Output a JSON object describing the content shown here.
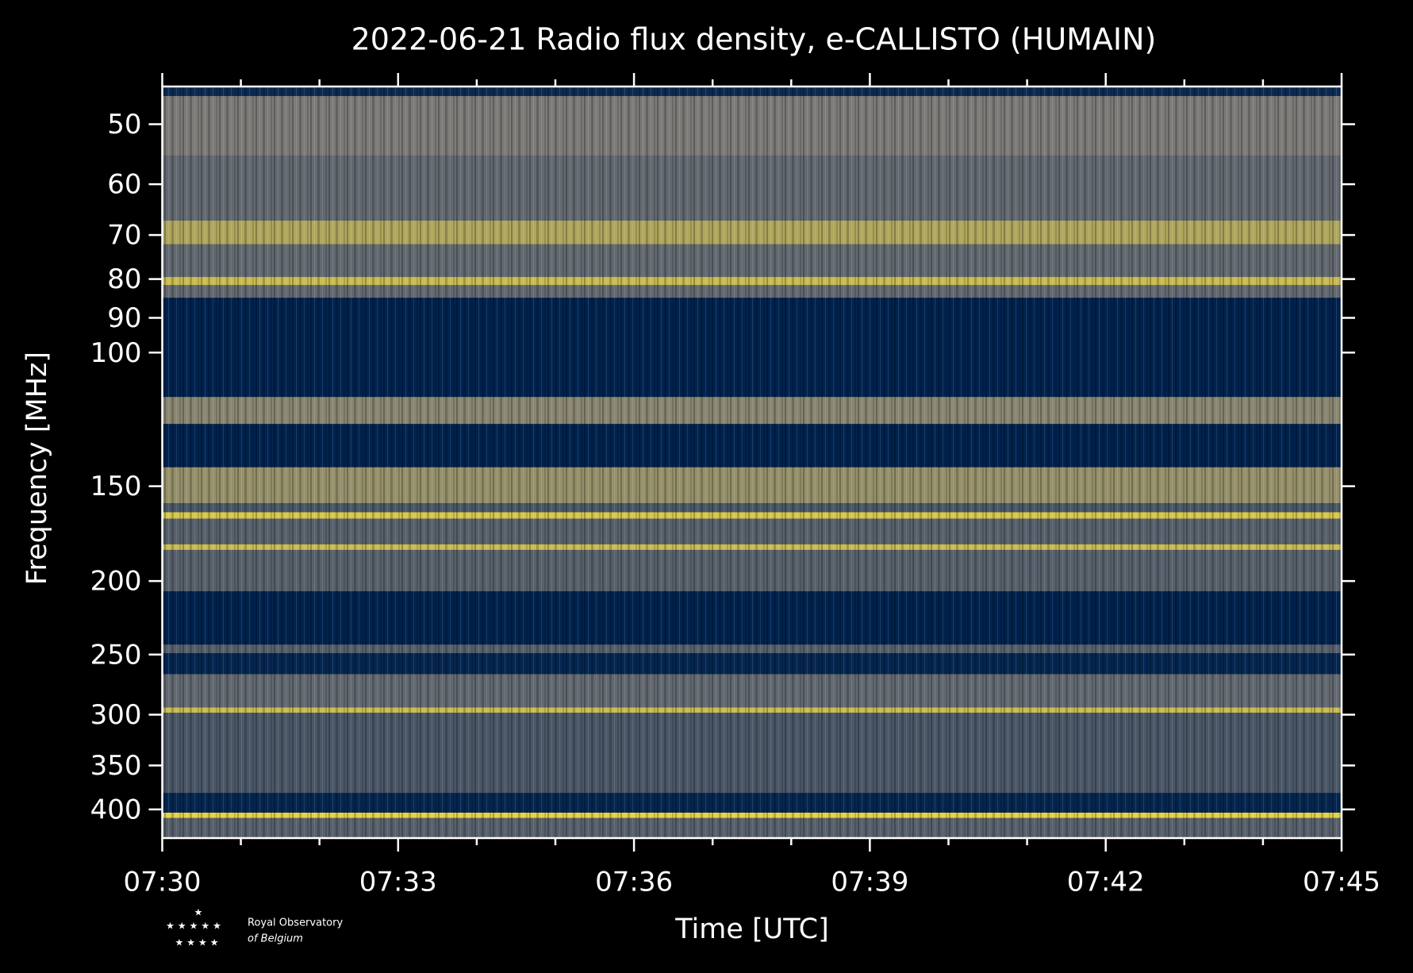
{
  "chart_data": {
    "type": "spectrogram",
    "title": "2022-06-21 Radio flux density, e-CALLISTO (HUMAIN)",
    "xlabel": "Time [UTC]",
    "ylabel": "Frequency [MHz]",
    "xlim": [
      "07:30",
      "07:45"
    ],
    "xticks": [
      "07:30",
      "07:33",
      "07:36",
      "07:39",
      "07:42",
      "07:45"
    ],
    "xticks_minor": [
      "07:31",
      "07:32",
      "07:34",
      "07:35",
      "07:37",
      "07:38",
      "07:40",
      "07:41",
      "07:43",
      "07:44"
    ],
    "ylim": [
      44.6,
      436.3
    ],
    "ylog": true,
    "yinverted": true,
    "yticks": [
      50,
      60,
      70,
      80,
      90,
      100,
      150,
      200,
      250,
      300,
      350,
      400
    ],
    "colormap": [
      "#00224e",
      "#7c7b78",
      "#fee838"
    ],
    "freq_edges": [
      44.6,
      45.9,
      55,
      67,
      72,
      79.5,
      81.5,
      84.7,
      114.4,
      124.2,
      141.6,
      158,
      162.3,
      165.5,
      178.9,
      182,
      206.4,
      242.5,
      249,
      265.3,
      293.6,
      298.4,
      380.6,
      403.9,
      410.6,
      436.3
    ],
    "intensity": [
      0.05,
      0.5,
      0.4,
      0.7,
      0.4,
      0.8,
      0.4,
      0,
      0.55,
      0,
      0.6,
      0.3,
      0.85,
      0.35,
      0.8,
      0.35,
      0,
      0.35,
      0.02,
      0.4,
      0.8,
      0.3,
      0.02,
      0.9,
      0.35
    ]
  },
  "logo": {
    "line1": "Royal Observatory",
    "line2": "of Belgium"
  }
}
